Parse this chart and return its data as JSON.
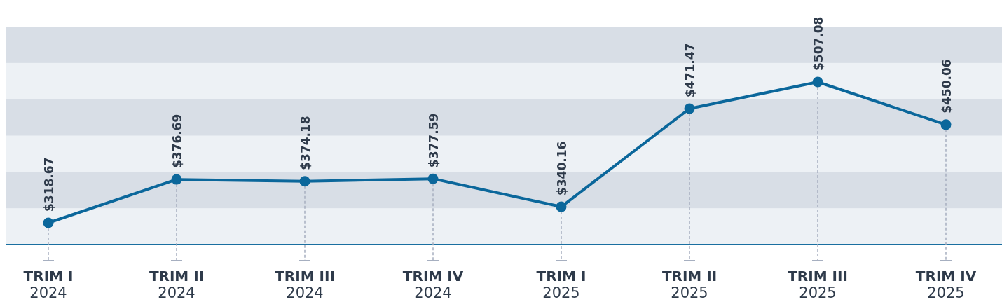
{
  "chart_data": {
    "type": "line",
    "categories": [
      "TRIM I\n2024",
      "TRIM II\n2024",
      "TRIM III\n2024",
      "TRIM IV\n2024",
      "TRIM I\n2025",
      "TRIM II\n2025",
      "TRIM III\n2025",
      "TRIM IV\n2025"
    ],
    "series": [
      {
        "color": "#0b679b",
        "values": [
          318.67,
          376.69,
          374.18,
          377.59,
          340.16,
          471.47,
          507.08,
          450.06
        ],
        "value_labels": [
          "$318.67",
          "$376.69",
          "$374.18",
          "$377.59",
          "$340.16",
          "$471.47",
          "$507.08",
          "$450.06"
        ]
      }
    ],
    "grid": true,
    "marker": "circle",
    "line_style": "solid",
    "tick_labels": "x"
  }
}
